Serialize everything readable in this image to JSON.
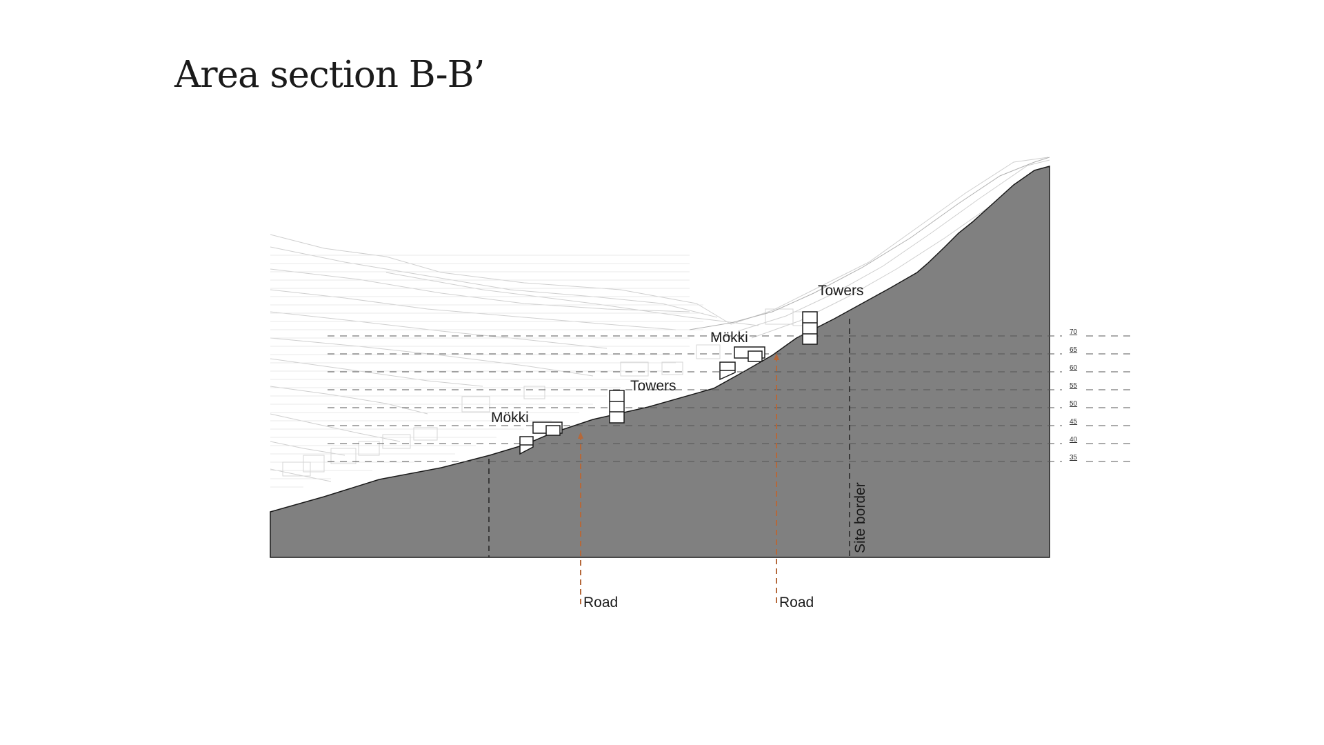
{
  "title": "Area section B-B’",
  "labels": {
    "towers_upper": "Towers",
    "mokki_upper": "Mökki",
    "towers_lower": "Towers",
    "mokki_lower": "Mökki",
    "road_left": "Road",
    "road_right": "Road",
    "site_border": "Site border"
  },
  "elevations": [
    "70",
    "65",
    "60",
    "55",
    "50",
    "45",
    "40",
    "35"
  ],
  "colors": {
    "ground": "#808080",
    "road_marker": "#b5683a",
    "outline": "#1a1a1a",
    "hatch": "#c8c8c8"
  }
}
